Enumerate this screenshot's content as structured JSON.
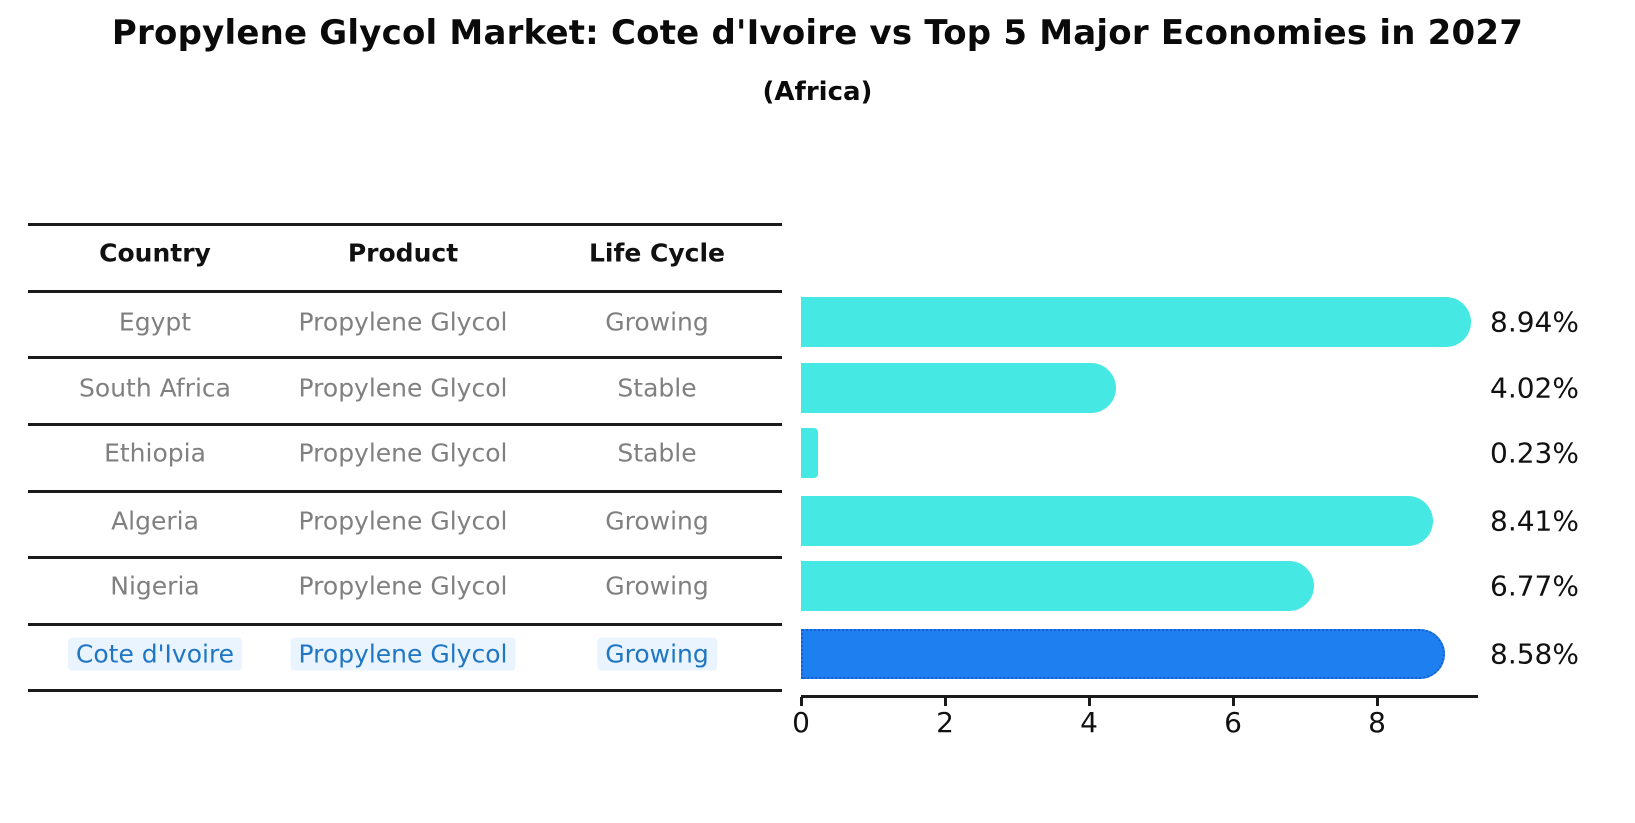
{
  "title": "Propylene Glycol Market: Cote d'Ivoire vs Top 5 Major Economies in 2027",
  "subtitle": "(Africa)",
  "table": {
    "headers": [
      "Country",
      "Product",
      "Life Cycle"
    ],
    "rows": [
      {
        "country": "Egypt",
        "product": "Propylene Glycol",
        "life_cycle": "Growing",
        "highlight": false
      },
      {
        "country": "South Africa",
        "product": "Propylene Glycol",
        "life_cycle": "Stable",
        "highlight": false
      },
      {
        "country": "Ethiopia",
        "product": "Propylene Glycol",
        "life_cycle": "Stable",
        "highlight": false
      },
      {
        "country": "Algeria",
        "product": "Propylene Glycol",
        "life_cycle": "Growing",
        "highlight": false
      },
      {
        "country": "Nigeria",
        "product": "Propylene Glycol",
        "life_cycle": "Growing",
        "highlight": false
      },
      {
        "country": "Cote d'Ivoire",
        "product": "Propylene Glycol",
        "life_cycle": "Growing",
        "highlight": true
      }
    ]
  },
  "chart_data": {
    "type": "bar",
    "orientation": "horizontal",
    "categories": [
      "Egypt",
      "South Africa",
      "Ethiopia",
      "Algeria",
      "Nigeria",
      "Cote d'Ivoire"
    ],
    "values": [
      8.94,
      4.02,
      0.23,
      8.41,
      6.77,
      8.58
    ],
    "labels": [
      "8.94%",
      "4.02%",
      "0.23%",
      "8.41%",
      "6.77%",
      "8.58%"
    ],
    "x_ticks": [
      "0",
      "2",
      "4",
      "6",
      "8"
    ],
    "xlim": [
      0,
      9.4
    ],
    "grid": false,
    "legend": false,
    "highlight_index": 5
  },
  "colors": {
    "bar": "#45e8e2",
    "highlight_bar": "#1e80f0",
    "highlight_border": "#1560d0",
    "highlight_text": "#1f77c4",
    "highlight_text_bg": "#eaf4fe",
    "table_text": "#808080",
    "line": "#1a1a1a",
    "text": "#111111"
  }
}
